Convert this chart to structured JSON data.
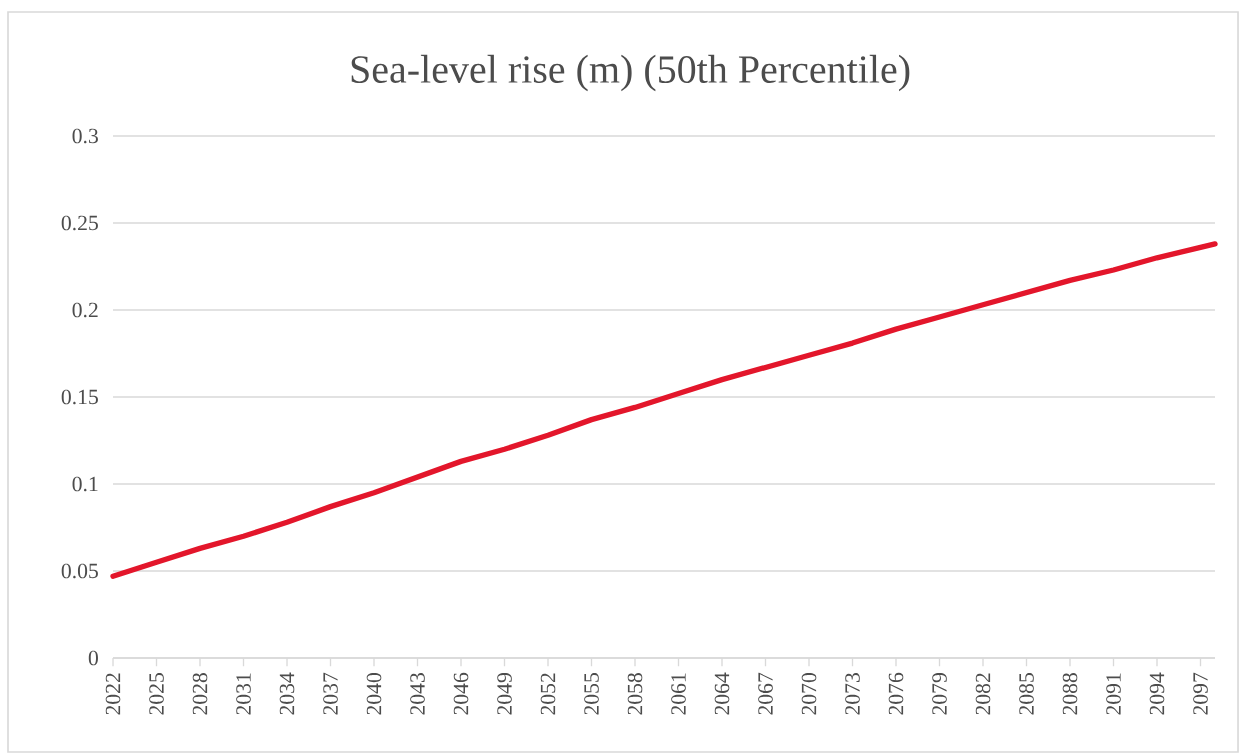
{
  "chart_data": {
    "type": "line",
    "title": "Sea-level rise (m) (50th Percentile)",
    "x": [
      2022,
      2025,
      2028,
      2031,
      2034,
      2037,
      2040,
      2043,
      2046,
      2049,
      2052,
      2055,
      2058,
      2061,
      2064,
      2067,
      2070,
      2073,
      2076,
      2079,
      2082,
      2085,
      2088,
      2091,
      2094,
      2097,
      2098
    ],
    "series": [
      {
        "color": "#e3162b",
        "values": [
          0.047,
          0.055,
          0.063,
          0.07,
          0.078,
          0.087,
          0.095,
          0.104,
          0.113,
          0.12,
          0.128,
          0.137,
          0.144,
          0.152,
          0.16,
          0.167,
          0.174,
          0.181,
          0.189,
          0.196,
          0.203,
          0.21,
          0.217,
          0.223,
          0.23,
          0.236,
          0.238
        ]
      }
    ],
    "xlim": [
      2022,
      2098
    ],
    "xticks": [
      2022,
      2025,
      2028,
      2031,
      2034,
      2037,
      2040,
      2043,
      2046,
      2049,
      2052,
      2055,
      2058,
      2061,
      2064,
      2067,
      2070,
      2073,
      2076,
      2079,
      2082,
      2085,
      2088,
      2091,
      2094,
      2097
    ],
    "ylim": [
      0,
      0.3
    ],
    "yticks": [
      0,
      0.05,
      0.1,
      0.15,
      0.2,
      0.25,
      0.3
    ],
    "grid": "y",
    "marker": "none",
    "line_style": "solid"
  }
}
